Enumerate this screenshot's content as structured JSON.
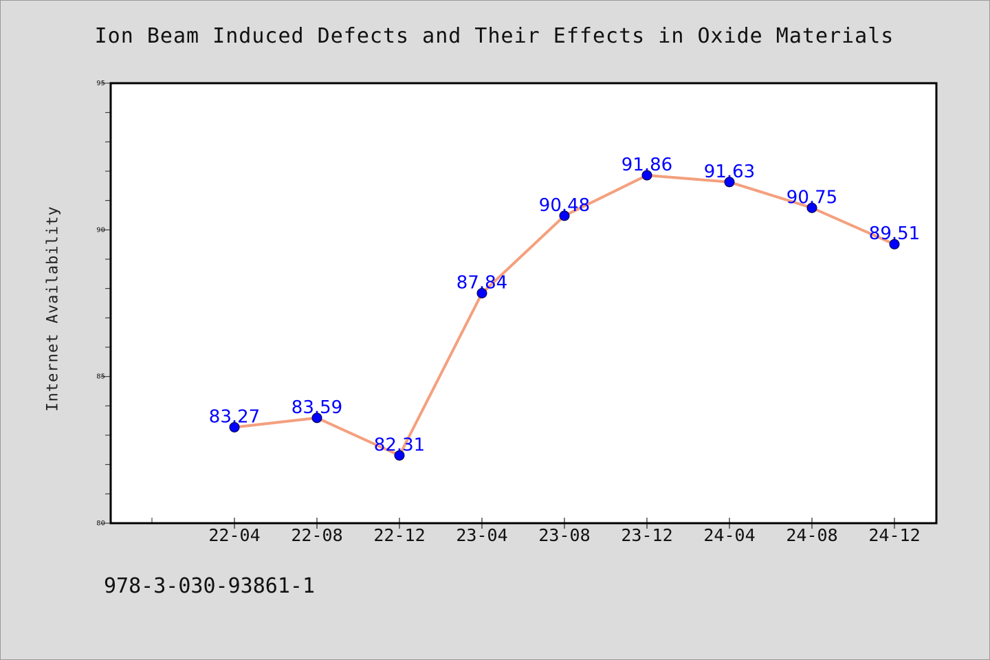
{
  "chart_data": {
    "type": "line",
    "title": "Ion Beam Induced Defects and Their Effects in Oxide Materials",
    "xlabel": "",
    "ylabel": "Internet Availability",
    "categories": [
      "22-04",
      "22-08",
      "22-12",
      "23-04",
      "23-08",
      "23-12",
      "24-04",
      "24-08",
      "24-12"
    ],
    "series": [
      {
        "values": [
          83.27,
          83.59,
          82.31,
          87.84,
          90.48,
          91.86,
          91.63,
          90.75,
          89.51
        ],
        "data_labels": [
          "83.27",
          "83.59",
          "82.31",
          "87.84",
          "90.48",
          "91.86",
          "91.63",
          "90.75",
          "89.51"
        ]
      }
    ],
    "ylim": [
      80,
      95
    ],
    "y_ticks": [
      "80",
      "85",
      "90",
      "95"
    ],
    "grid": false,
    "legend": "none",
    "colors": {
      "line": "#f4a07e",
      "marker": "#0000ff",
      "data_label": "#0000ff",
      "plot_background": "#ffffff",
      "page_background": "#dcdcdc"
    }
  },
  "footer": {
    "isbn": "978-3-030-93861-1"
  }
}
